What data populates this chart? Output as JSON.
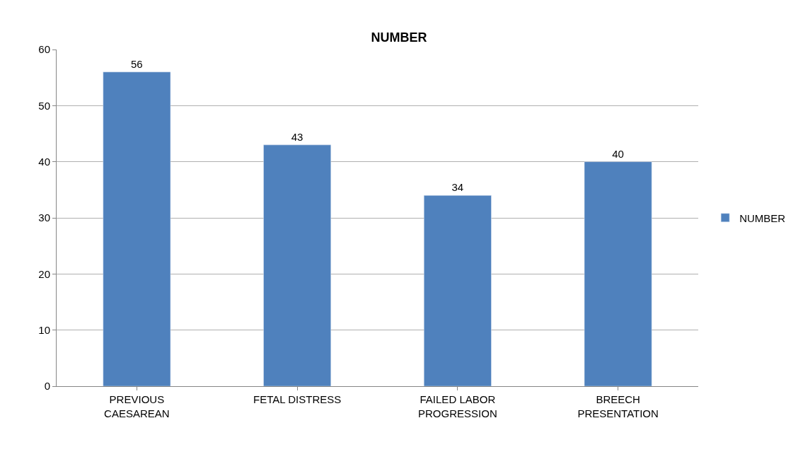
{
  "chart_data": {
    "type": "bar",
    "title": "NUMBER",
    "categories": [
      "PREVIOUS CAESAREAN",
      "FETAL DISTRESS",
      "FAILED LABOR PROGRESSION",
      "BREECH PRESENTATION"
    ],
    "series": [
      {
        "name": "NUMBER",
        "color": "#4f81bd",
        "values": [
          56,
          43,
          34,
          40
        ]
      }
    ],
    "ylim": [
      0,
      60
    ],
    "yticks": [
      0,
      10,
      20,
      30,
      40,
      50,
      60
    ],
    "grid": "y",
    "legend": "right",
    "data_labels": true
  }
}
